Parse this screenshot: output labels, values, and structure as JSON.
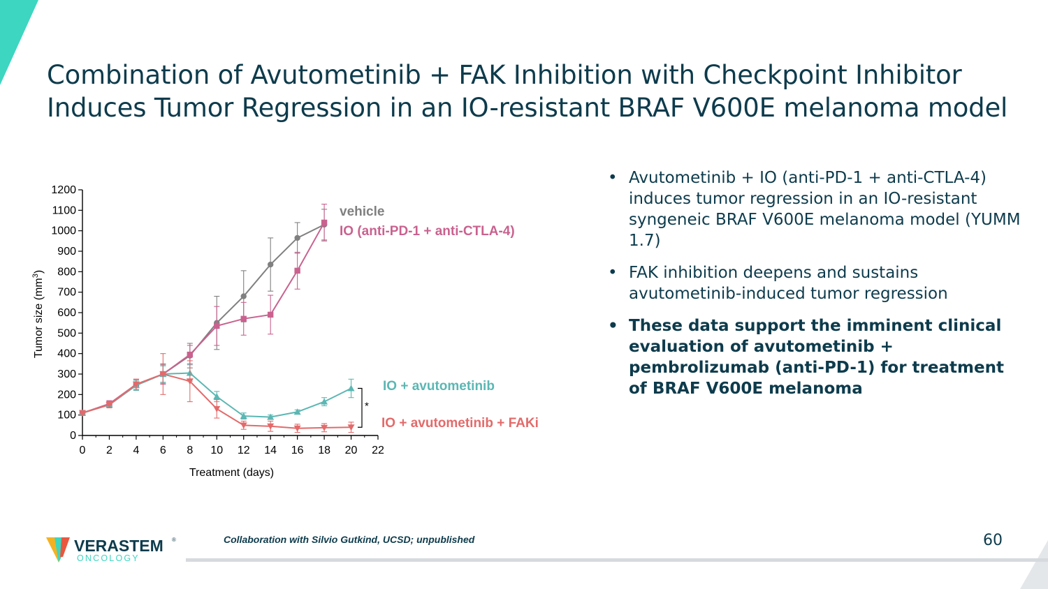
{
  "slide": {
    "title_lines": [
      "Combination of Avutometinib + FAK Inhibition with Checkpoint Inhibitor",
      "Induces Tumor Regression in an IO-resistant BRAF V600E melanoma model"
    ],
    "bullets": [
      {
        "text": "Avutometinib + IO (anti-PD-1 + anti-CTLA-4) induces tumor regression in an IO-resistant syngeneic BRAF V600E melanoma model (YUMM 1.7)",
        "bold": false
      },
      {
        "text": "FAK inhibition deepens and sustains avutometinib-induced tumor regression",
        "bold": false
      },
      {
        "text": "These data support the imminent clinical evaluation of avutometinib + pembrolizumab (anti-PD-1) for treatment of BRAF V600E melanoma",
        "bold": true
      }
    ],
    "footer_note": "Collaboration with Silvio Gutkind, UCSD; unpublished",
    "page_number": "60",
    "logo": {
      "name": "VERASTEM",
      "tm": "®",
      "sub": "ONCOLOGY"
    },
    "colors": {
      "teal_accent": "#3dd6c0",
      "navy": "#0d3b4c",
      "footer_line": "#d6dade"
    }
  },
  "chart_data": {
    "type": "line",
    "xlabel": "Treatment (days)",
    "ylabel": "Tumor size (mm",
    "ylabel_sup": "3",
    "ylabel_close": ")",
    "xlim": [
      0,
      22
    ],
    "ylim": [
      0,
      1200
    ],
    "xticks": [
      0,
      2,
      4,
      6,
      8,
      10,
      12,
      14,
      16,
      18,
      20,
      22
    ],
    "yticks": [
      0,
      100,
      200,
      300,
      400,
      500,
      600,
      700,
      800,
      900,
      1000,
      1100,
      1200
    ],
    "significance": "*",
    "series": [
      {
        "name": "vehicle",
        "color": "#808080",
        "marker": "circle",
        "x": [
          0,
          2,
          4,
          6,
          8,
          10,
          12,
          14,
          16,
          18
        ],
        "y": [
          110,
          150,
          245,
          300,
          390,
          550,
          680,
          835,
          965,
          1030
        ],
        "err": [
          10,
          15,
          25,
          45,
          60,
          130,
          125,
          130,
          75,
          75
        ]
      },
      {
        "name": "IO (anti-PD-1 + anti-CTLA-4)",
        "color": "#c9628f",
        "marker": "square",
        "x": [
          0,
          2,
          4,
          6,
          8,
          10,
          12,
          14,
          16,
          18
        ],
        "y": [
          110,
          155,
          250,
          300,
          395,
          535,
          570,
          590,
          805,
          1040
        ],
        "err": [
          10,
          15,
          25,
          50,
          45,
          95,
          80,
          95,
          90,
          90
        ]
      },
      {
        "name": "IO + avutometinib",
        "color": "#5bb7b3",
        "marker": "triangle-up",
        "x": [
          0,
          2,
          4,
          6,
          8,
          10,
          12,
          14,
          16,
          18,
          20
        ],
        "y": [
          110,
          150,
          245,
          300,
          305,
          190,
          95,
          90,
          115,
          165,
          230
        ],
        "err": [
          10,
          15,
          25,
          40,
          40,
          25,
          15,
          10,
          10,
          20,
          45
        ]
      },
      {
        "name": "IO + avutometinib + FAKi",
        "color": "#e36a6a",
        "marker": "triangle-down",
        "x": [
          0,
          2,
          4,
          6,
          8,
          10,
          12,
          14,
          16,
          18,
          20
        ],
        "y": [
          110,
          150,
          250,
          300,
          265,
          130,
          50,
          45,
          35,
          38,
          40
        ],
        "err": [
          10,
          15,
          25,
          100,
          100,
          45,
          20,
          25,
          20,
          20,
          25
        ]
      }
    ]
  }
}
